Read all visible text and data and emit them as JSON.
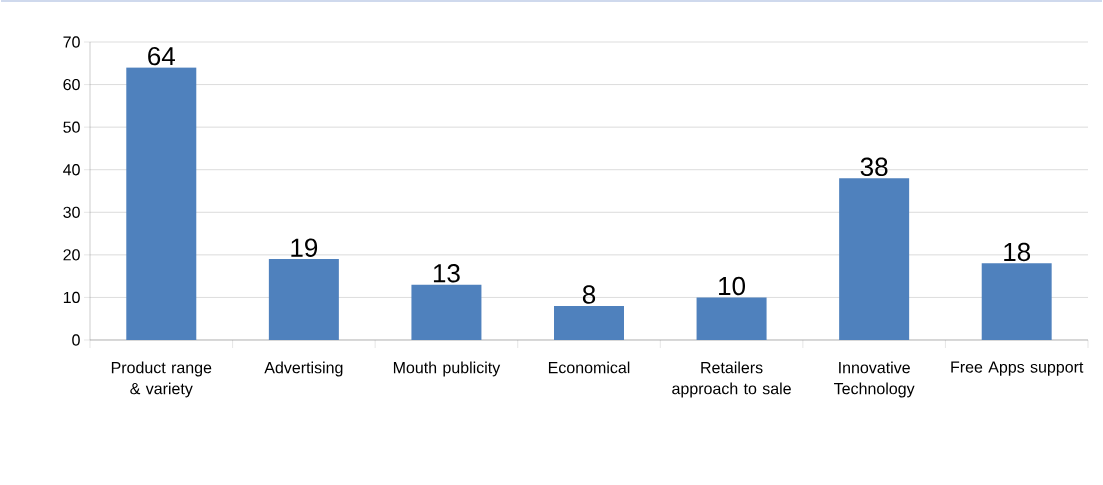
{
  "chart_data": {
    "type": "bar",
    "categories": [
      "Product range & variety",
      "Advertising",
      "Mouth publicity",
      "Economical",
      "Retailers approach to sale",
      "Innovative Technology",
      "Free Apps support"
    ],
    "values": [
      64,
      19,
      13,
      8,
      10,
      38,
      18
    ],
    "color": "#4f81bd",
    "ylim": [
      0,
      70
    ],
    "yticks": [
      0,
      10,
      20,
      30,
      40,
      50,
      60,
      70
    ],
    "grid": "y",
    "data_labels": true
  }
}
